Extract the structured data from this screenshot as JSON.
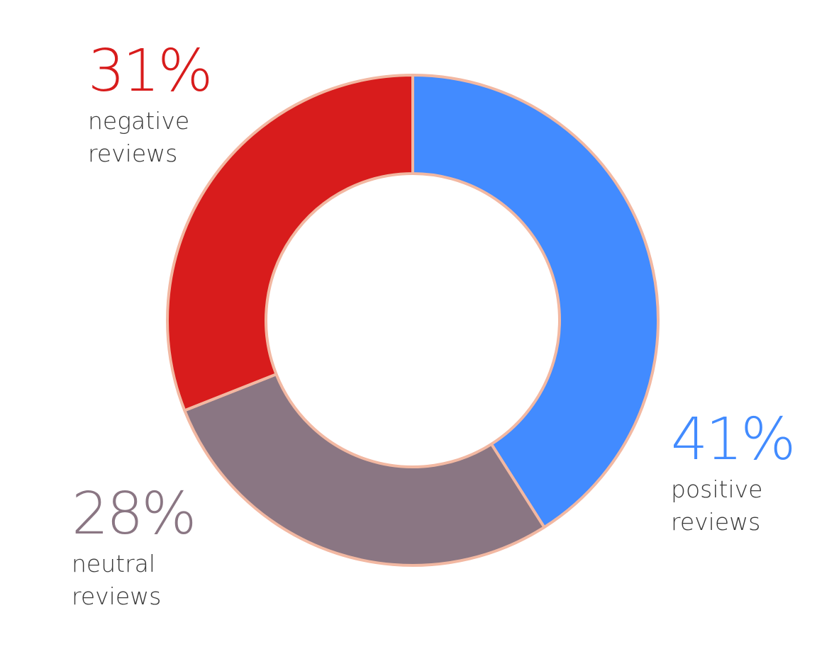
{
  "chart_data": {
    "type": "pie",
    "donut": true,
    "slices": [
      {
        "name": "positive reviews",
        "value": 41,
        "label": "41%",
        "line1": "positive",
        "line2": "reviews",
        "color": "#428bff"
      },
      {
        "name": "neutral reviews",
        "value": 28,
        "label": "28%",
        "line1": "neutral",
        "line2": "reviews",
        "color": "#8a7683"
      },
      {
        "name": "negative reviews",
        "value": 31,
        "label": "31%",
        "line1": "negative",
        "line2": "reviews",
        "color": "#d81c1c"
      }
    ],
    "stroke_color": "#f2b8a2",
    "start_angle": "12 o'clock",
    "direction": "clockwise"
  }
}
